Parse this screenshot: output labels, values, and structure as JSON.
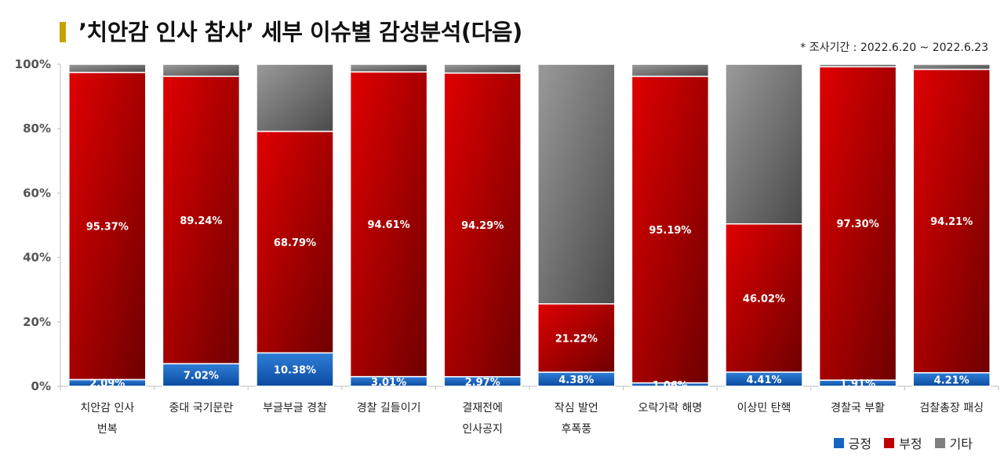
{
  "title": "’치안감 인사 참사’ 세부 이슈별 감성분석(다음)",
  "period": "* 조사기간 : 2022.6.20 ~ 2022.6.23",
  "chart_data": {
    "type": "bar",
    "stacked": true,
    "title": "’치안감 인사 참사’ 세부 이슈별 감성분석(다음)",
    "categories": [
      [
        "치안감 인사",
        "번복"
      ],
      [
        "중대 국기문란"
      ],
      [
        "부글부글 경찰"
      ],
      [
        "경찰 길들이기"
      ],
      [
        "결재전에",
        "인사공지"
      ],
      [
        "작심 발언",
        "후폭풍"
      ],
      [
        "오락가락 해명"
      ],
      [
        "이상민 탄핵"
      ],
      [
        "경찰국 부활"
      ],
      [
        "검찰총장 패싱"
      ]
    ],
    "series": [
      {
        "name": "긍정",
        "color": "#1565c0",
        "values": [
          2.09,
          7.02,
          10.38,
          3.01,
          2.97,
          4.38,
          1.06,
          4.41,
          1.91,
          4.21
        ],
        "labels": [
          "2.09%",
          "7.02%",
          "10.38%",
          "3.01%",
          "2.97%",
          "4.38%",
          "1.06%",
          "4.41%",
          "1.91%",
          "4.21%"
        ]
      },
      {
        "name": "부정",
        "color": "#c00000",
        "values": [
          95.37,
          89.24,
          68.79,
          94.61,
          94.29,
          21.22,
          95.19,
          46.02,
          97.3,
          94.21
        ],
        "labels": [
          "95.37%",
          "89.24%",
          "68.79%",
          "94.61%",
          "94.29%",
          "21.22%",
          "95.19%",
          "46.02%",
          "97.30%",
          "94.21%"
        ]
      },
      {
        "name": "기타",
        "color": "#7f7f7f",
        "values": [
          2.54,
          3.74,
          20.83,
          2.38,
          2.74,
          74.4,
          3.75,
          49.57,
          0.79,
          1.58
        ]
      }
    ],
    "yticks": [
      "0%",
      "20%",
      "40%",
      "60%",
      "80%",
      "100%"
    ],
    "ylim": [
      0,
      100
    ],
    "legend": "bottom-right"
  }
}
